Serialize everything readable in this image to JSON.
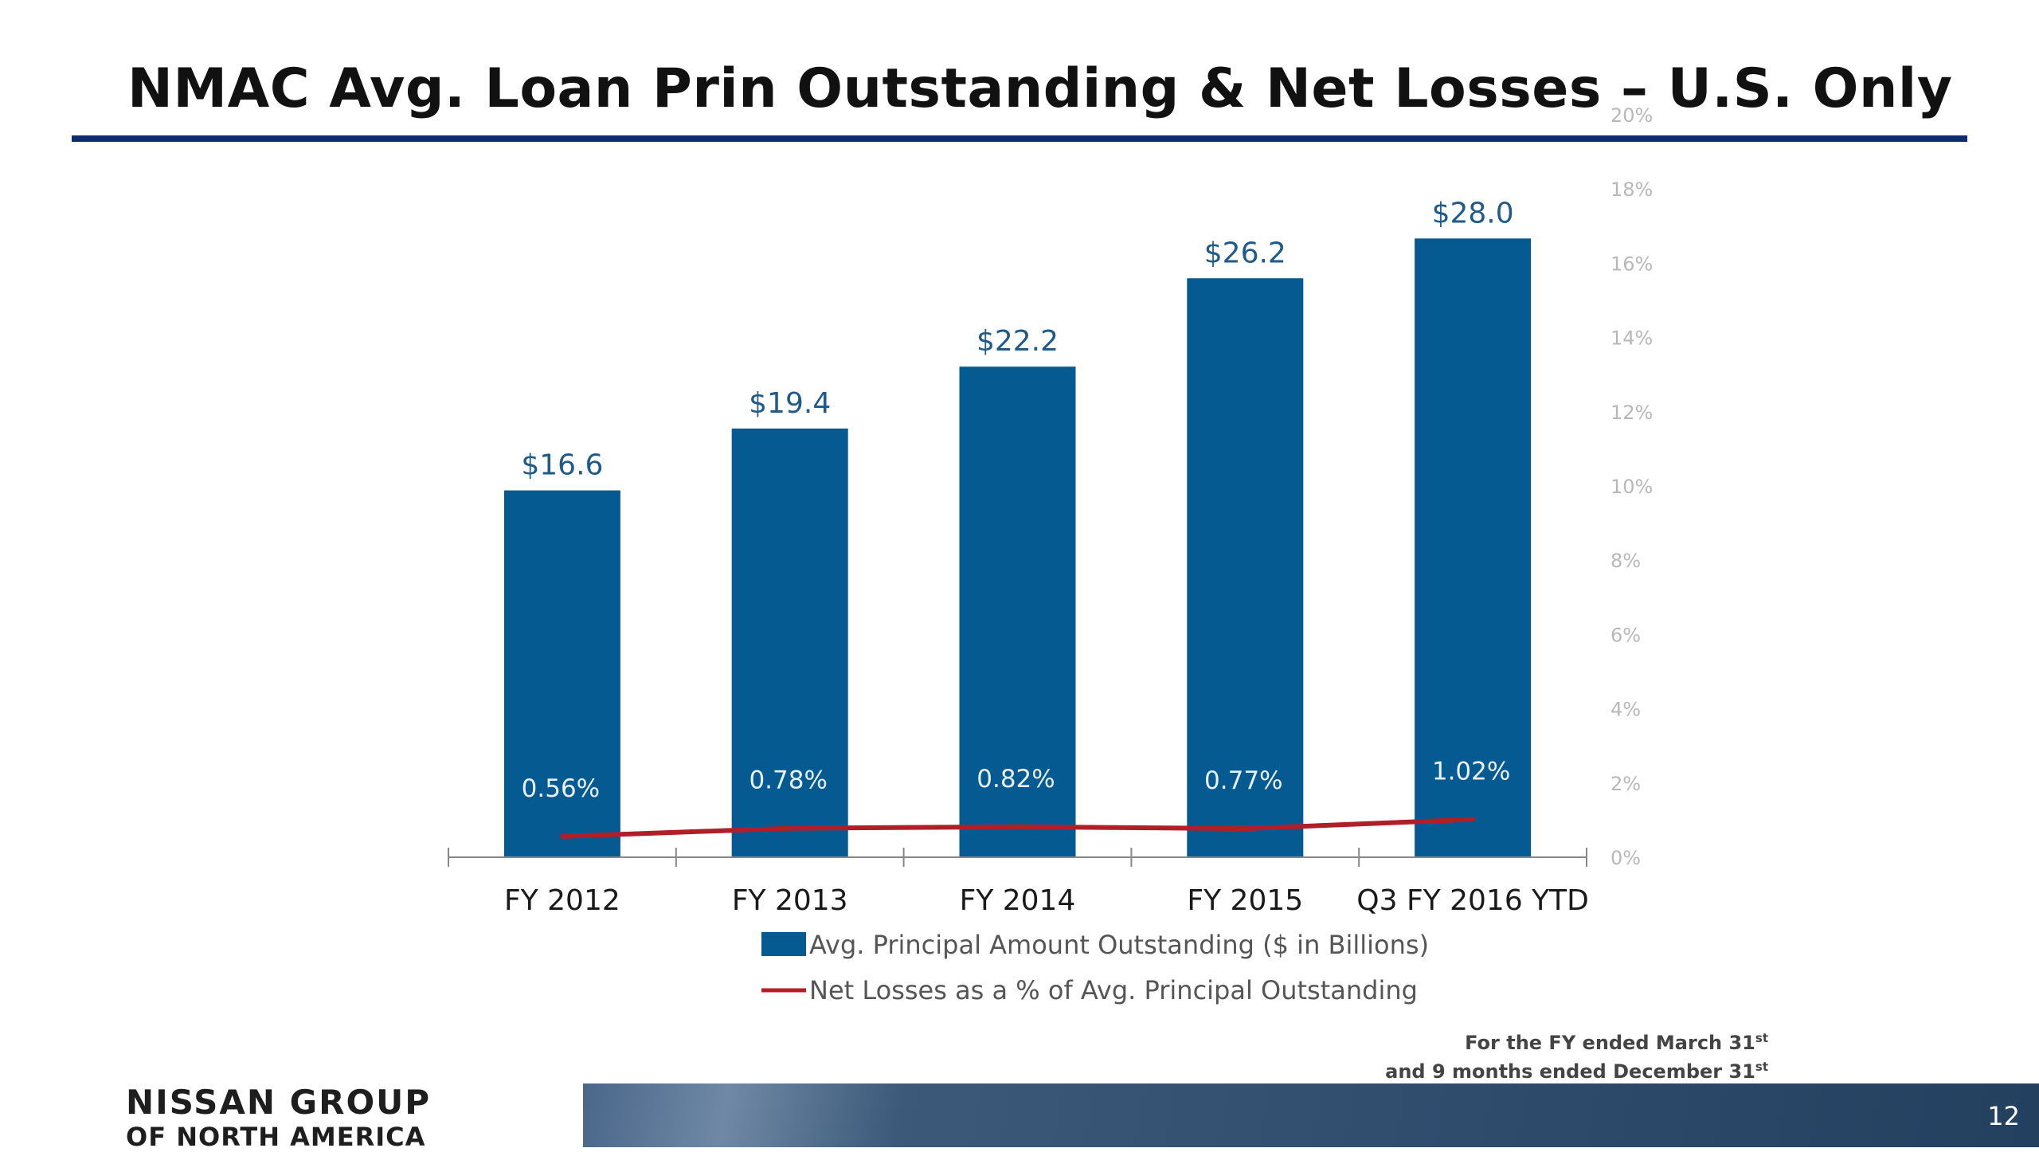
{
  "slide": {
    "title": "NMAC Avg. Loan Prin Outstanding & Net Losses – U.S. Only",
    "footnote_line1": "For the FY ended March 31",
    "footnote_line1_sup": "st",
    "footnote_line2": "and 9 months ended December 31",
    "footnote_line2_sup": "st",
    "logo_line1": "NISSAN GROUP",
    "logo_line2": "OF NORTH AMERICA",
    "page_number": "12"
  },
  "chart_data": {
    "type": "bar",
    "categories": [
      "FY 2012",
      "FY 2013",
      "FY 2014",
      "FY 2015",
      "Q3 FY 2016 YTD"
    ],
    "series": [
      {
        "name": "Avg. Principal Amount Outstanding ($ in Billions)",
        "type": "bar",
        "axis": "left",
        "values": [
          16.6,
          19.4,
          22.2,
          26.2,
          28.0
        ],
        "labels": [
          "$16.6",
          "$19.4",
          "$22.2",
          "$26.2",
          "$28.0"
        ],
        "color": "#065a92"
      },
      {
        "name": "Net Losses as a % of Avg. Principal Outstanding",
        "type": "line",
        "axis": "right",
        "values": [
          0.56,
          0.78,
          0.82,
          0.77,
          1.02
        ],
        "labels": [
          "0.56%",
          "0.78%",
          "0.82%",
          "0.77%",
          "1.02%"
        ],
        "color": "#b01e28"
      }
    ],
    "y_left_range": [
      0,
      33.6
    ],
    "y_right": {
      "range": [
        0,
        20
      ],
      "ticks": [
        "0%",
        "2%",
        "4%",
        "6%",
        "8%",
        "10%",
        "12%",
        "14%",
        "16%",
        "18%",
        "20%"
      ]
    },
    "legend_position": "bottom",
    "grid": false
  }
}
